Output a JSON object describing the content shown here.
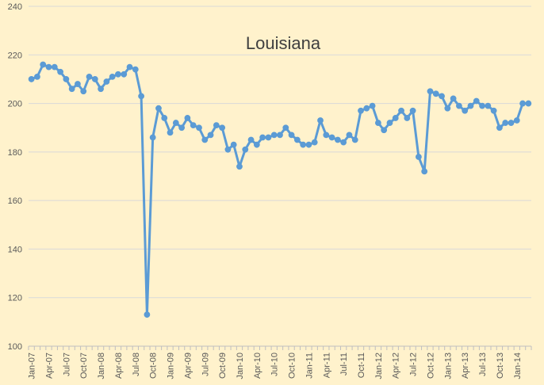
{
  "chart_data": {
    "type": "line",
    "title": "Louisiana",
    "ylim": [
      100,
      240
    ],
    "yticks": [
      100,
      120,
      140,
      160,
      180,
      200,
      220,
      240
    ],
    "grid": true,
    "legend": "none",
    "line_color": "#5B9BD5",
    "grid_color": "#D9D9D9",
    "background_color": "#FFF2CC",
    "x_tick_labels": [
      "Jan-07",
      "Apr-07",
      "Jul-07",
      "Oct-07",
      "Jan-08",
      "Apr-08",
      "Jul-08",
      "Oct-08",
      "Jan-09",
      "Apr-09",
      "Jul-09",
      "Oct-09",
      "Jan-10",
      "Apr-10",
      "Jul-10",
      "Oct-10",
      "Jan-11",
      "Apr-11",
      "Jul-11",
      "Oct-11",
      "Jan-12",
      "Apr-12",
      "Jul-12",
      "Oct-12",
      "Jan-13",
      "Apr-13",
      "Jul-13",
      "Oct-13",
      "Jan-14"
    ],
    "x": [
      "Jan-07",
      "Feb-07",
      "Mar-07",
      "Apr-07",
      "May-07",
      "Jun-07",
      "Jul-07",
      "Aug-07",
      "Sep-07",
      "Oct-07",
      "Nov-07",
      "Dec-07",
      "Jan-08",
      "Feb-08",
      "Mar-08",
      "Apr-08",
      "May-08",
      "Jun-08",
      "Jul-08",
      "Aug-08",
      "Sep-08",
      "Oct-08",
      "Nov-08",
      "Dec-08",
      "Jan-09",
      "Feb-09",
      "Mar-09",
      "Apr-09",
      "May-09",
      "Jun-09",
      "Jul-09",
      "Aug-09",
      "Sep-09",
      "Oct-09",
      "Nov-09",
      "Dec-09",
      "Jan-10",
      "Feb-10",
      "Mar-10",
      "Apr-10",
      "May-10",
      "Jun-10",
      "Jul-10",
      "Aug-10",
      "Sep-10",
      "Oct-10",
      "Nov-10",
      "Dec-10",
      "Jan-11",
      "Feb-11",
      "Mar-11",
      "Apr-11",
      "May-11",
      "Jun-11",
      "Jul-11",
      "Aug-11",
      "Sep-11",
      "Oct-11",
      "Nov-11",
      "Dec-11",
      "Jan-12",
      "Feb-12",
      "Mar-12",
      "Apr-12",
      "May-12",
      "Jun-12",
      "Jul-12",
      "Aug-12",
      "Sep-12",
      "Oct-12",
      "Nov-12",
      "Dec-12",
      "Jan-13",
      "Feb-13",
      "Mar-13",
      "Apr-13",
      "May-13",
      "Jun-13",
      "Jul-13",
      "Aug-13",
      "Sep-13",
      "Oct-13",
      "Nov-13",
      "Dec-13",
      "Jan-14",
      "Feb-14",
      "Mar-14"
    ],
    "values": [
      210,
      211,
      216,
      215,
      215,
      213,
      210,
      206,
      208,
      205,
      211,
      210,
      206,
      209,
      211,
      212,
      212,
      215,
      214,
      203,
      113,
      186,
      198,
      194,
      188,
      192,
      190,
      194,
      191,
      190,
      185,
      187,
      191,
      190,
      181,
      183,
      174,
      181,
      185,
      183,
      186,
      186,
      187,
      187,
      190,
      187,
      185,
      183,
      183,
      184,
      193,
      187,
      186,
      185,
      184,
      187,
      185,
      197,
      198,
      199,
      192,
      189,
      192,
      194,
      197,
      194,
      197,
      178,
      172,
      205,
      204,
      203,
      198,
      202,
      199,
      197,
      199,
      201,
      199,
      199,
      197,
      190,
      192,
      192,
      193,
      200,
      200
    ]
  }
}
